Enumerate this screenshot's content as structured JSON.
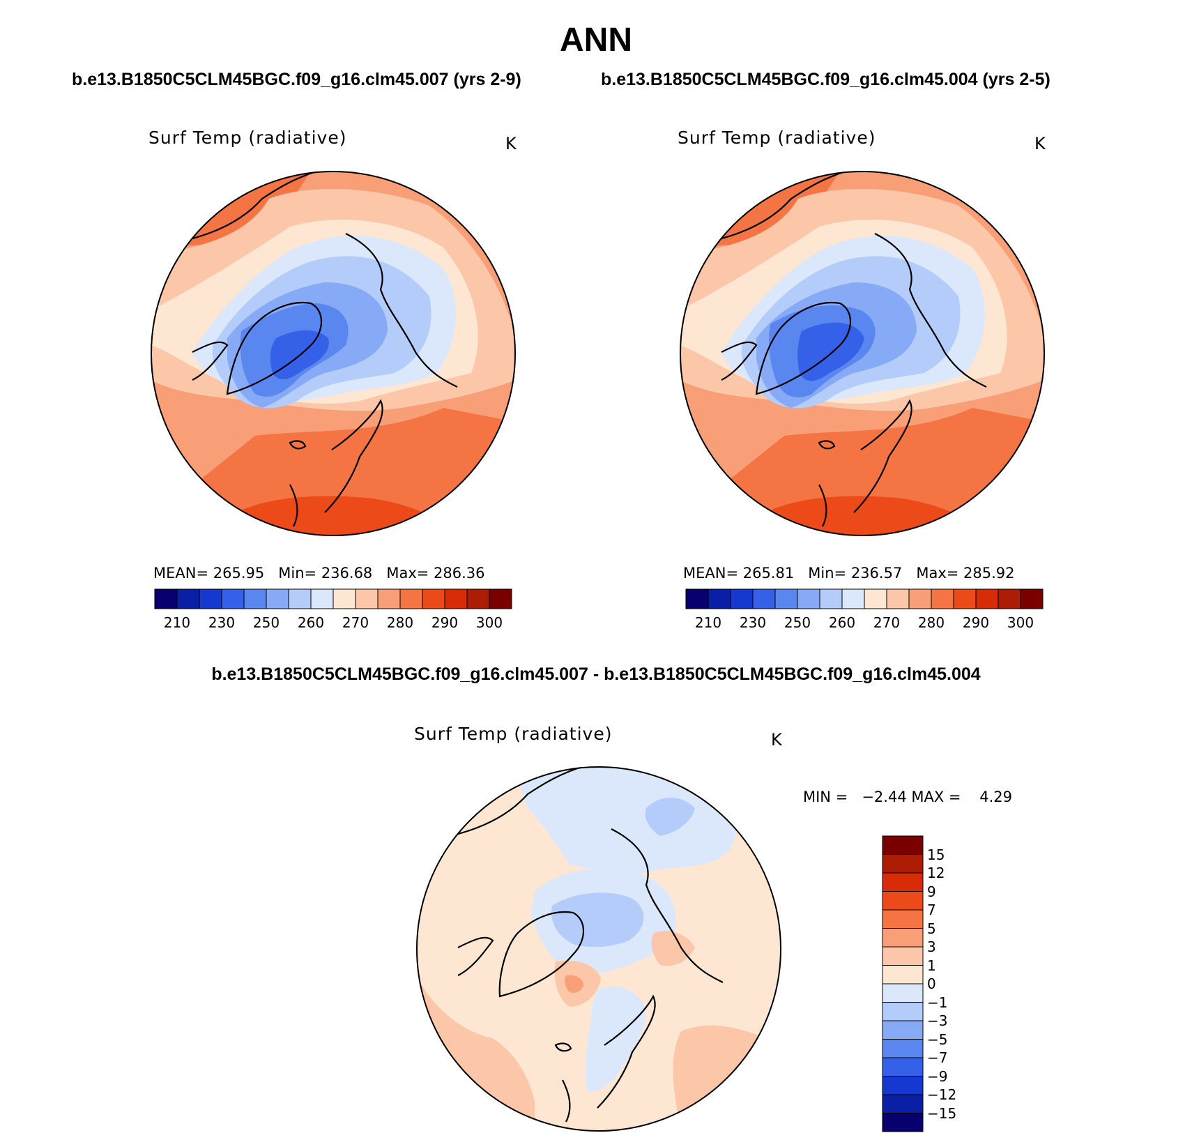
{
  "title": "ANN",
  "case_left": "b.e13.B1850C5CLM45BGC.f09_g16.clm45.007 (yrs 2-9)",
  "case_right": "b.e13.B1850C5CLM45BGC.f09_g16.clm45.004 (yrs 2-5)",
  "diff_title": "b.e13.B1850C5CLM45BGC.f09_g16.clm45.007 - b.e13.B1850C5CLM45BGC.f09_g16.clm45.004",
  "panels": {
    "left": {
      "variable": "Surf Temp (radiative)",
      "units": "K",
      "mean_label": "MEAN=",
      "mean": "265.95",
      "min_label": "Min=",
      "min": "236.68",
      "max_label": "Max=",
      "max": "286.36"
    },
    "right": {
      "variable": "Surf Temp (radiative)",
      "units": "K",
      "mean_label": "MEAN=",
      "mean": "265.81",
      "min_label": "Min=",
      "min": "236.57",
      "max_label": "Max=",
      "max": "285.92"
    },
    "diff": {
      "variable": "Surf Temp (radiative)",
      "units": "K",
      "min_label": "MIN =",
      "min": "−2.44",
      "max_label": "MAX =",
      "max": "4.29"
    }
  },
  "colorbar_abs": {
    "labels": [
      "210",
      "230",
      "250",
      "260",
      "270",
      "280",
      "290",
      "300"
    ],
    "colors": [
      "#08006e",
      "#0b1fa6",
      "#1438d0",
      "#3461e8",
      "#5a86f0",
      "#86aaf6",
      "#b4ccfa",
      "#dbe8fc",
      "#fde6d2",
      "#fcc6a8",
      "#f99f78",
      "#f57444",
      "#ec4a18",
      "#d82c08",
      "#ad1c04",
      "#7a0000"
    ]
  },
  "colorbar_diff": {
    "labels": [
      "15",
      "12",
      "9",
      "7",
      "5",
      "3",
      "1",
      "0",
      "−1",
      "−3",
      "−5",
      "−7",
      "−9",
      "−12",
      "−15"
    ],
    "colors": [
      "#7a0000",
      "#ad1c04",
      "#d82c08",
      "#ec4a18",
      "#f57444",
      "#f99f78",
      "#fcc6a8",
      "#fde6d2",
      "#dbe8fc",
      "#b4ccfa",
      "#86aaf6",
      "#5a86f0",
      "#3461e8",
      "#1438d0",
      "#0b1fa6",
      "#08006e"
    ]
  },
  "palette": {
    "warm_dark": "#ec4a18",
    "warm_mid": "#f57444",
    "warm_light": "#f99f78",
    "warm_pale": "#fcc6a8",
    "near_zero_warm": "#fde6d2",
    "near_zero_cool": "#dbe8fc",
    "cool_light": "#b4ccfa",
    "cool_mid": "#86aaf6",
    "cool_dark": "#5a86f0",
    "cool_core": "#3461e8",
    "cool_deep": "#1438d0"
  }
}
